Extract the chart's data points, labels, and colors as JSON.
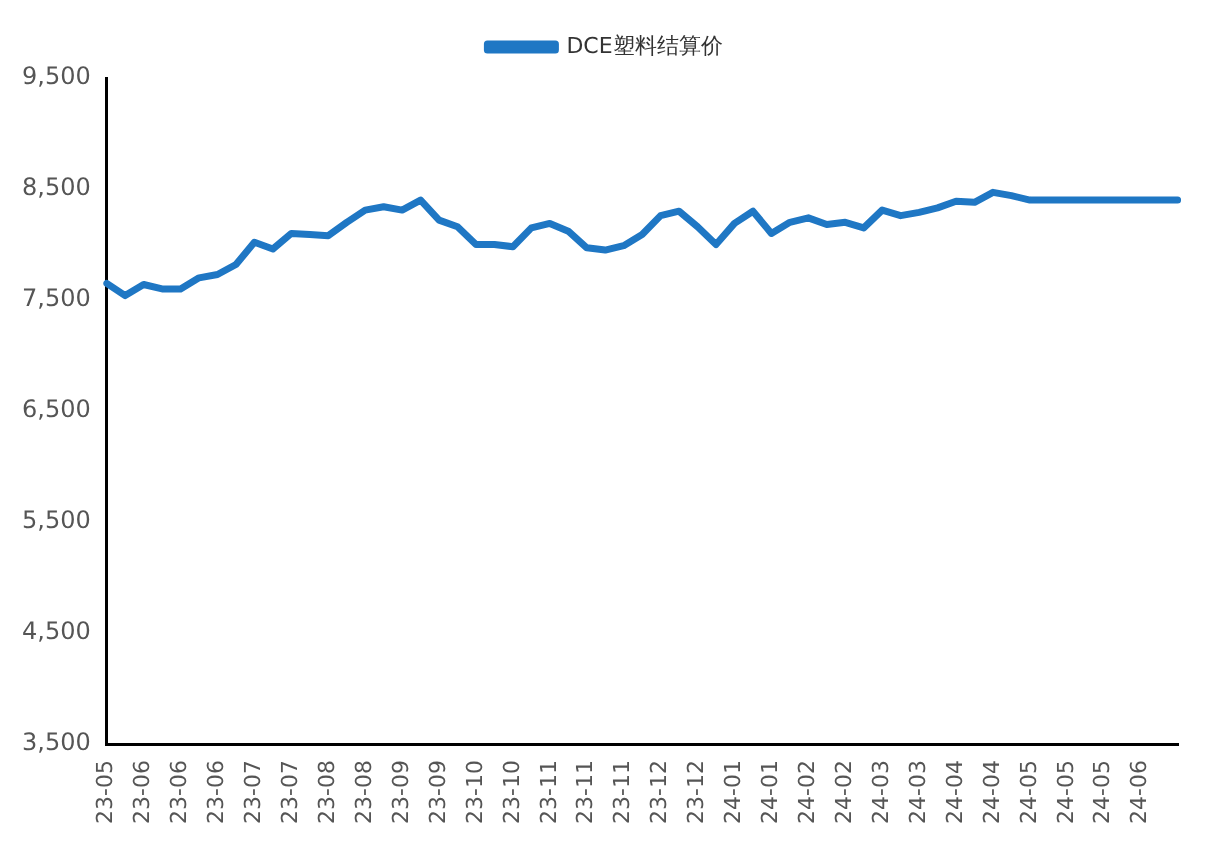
{
  "chart_data": {
    "type": "line",
    "categories": [
      "23-05",
      null,
      "23-06",
      null,
      "23-06",
      null,
      "23-06",
      null,
      "23-07",
      null,
      "23-07",
      null,
      "23-08",
      null,
      "23-08",
      null,
      "23-09",
      null,
      "23-09",
      null,
      "23-10",
      null,
      "23-10",
      null,
      "23-11",
      null,
      "23-11",
      null,
      "23-11",
      null,
      "23-12",
      null,
      "23-12",
      null,
      "24-01",
      null,
      "24-01",
      null,
      "24-02",
      null,
      "24-02",
      null,
      "24-03",
      null,
      "24-03",
      null,
      "24-04",
      null,
      "24-04",
      null,
      "24-05",
      null,
      "24-05",
      null,
      "24-05",
      null,
      "24-06",
      null,
      null
    ],
    "series": [
      {
        "name": "DCE塑料结算价",
        "color": "#1f77c4",
        "values": [
          7650,
          7540,
          7640,
          7600,
          7600,
          7700,
          7730,
          7820,
          8020,
          7960,
          8100,
          8090,
          8080,
          8200,
          8310,
          8340,
          8310,
          8400,
          8220,
          8160,
          8000,
          8000,
          7980,
          8150,
          8190,
          8120,
          7970,
          7950,
          7990,
          8090,
          8260,
          8300,
          8160,
          8000,
          8190,
          8300,
          8100,
          8200,
          8240,
          8180,
          8200,
          8150,
          8310,
          8260,
          8290,
          8330,
          8390,
          8380,
          8470,
          8440,
          8400,
          8400,
          8400,
          8400,
          8400,
          8400,
          8400,
          8400,
          8400
        ]
      }
    ],
    "ylim": [
      3500,
      9500
    ],
    "yticks": [
      {
        "value": 3500,
        "label": "3,500"
      },
      {
        "value": 4500,
        "label": "4,500"
      },
      {
        "value": 5500,
        "label": "5,500"
      },
      {
        "value": 6500,
        "label": "6,500"
      },
      {
        "value": 7500,
        "label": "7,500"
      },
      {
        "value": 8500,
        "label": "8,500"
      },
      {
        "value": 9500,
        "label": "9,500"
      }
    ],
    "grid": false,
    "legend": "top",
    "marker": "none",
    "line_style": "solid"
  }
}
